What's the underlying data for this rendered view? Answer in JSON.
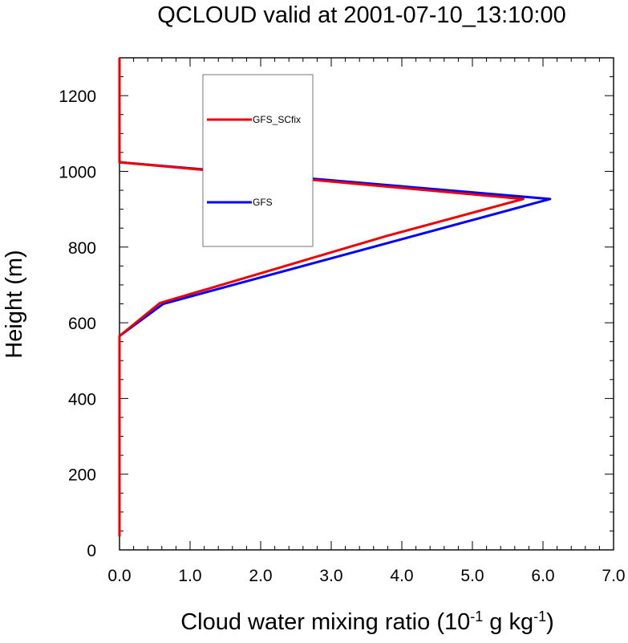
{
  "chart_data": {
    "type": "line",
    "title": "QCLOUD valid at 2001-07-10_13:10:00",
    "xlabel": {
      "main": "Cloud water mixing ratio (10",
      "sup1": "-1",
      "mid": " g kg",
      "sup2": "-1",
      "end": ")"
    },
    "ylabel": "Height (m)",
    "xlim": [
      0,
      7
    ],
    "ylim": [
      0,
      1300
    ],
    "x_ticks": [
      0,
      1,
      2,
      3,
      4,
      5,
      6,
      7
    ],
    "x_tick_labels": [
      "0.0",
      "1.0",
      "2.0",
      "3.0",
      "4.0",
      "5.0",
      "6.0",
      "7.0"
    ],
    "y_ticks": [
      0,
      200,
      400,
      600,
      800,
      1000,
      1200
    ],
    "y_tick_labels": [
      "0",
      "200",
      "400",
      "600",
      "800",
      "1000",
      "1200"
    ],
    "grid": false,
    "legend_position": "upper-left-center",
    "series": [
      {
        "name": "GFS",
        "color": "#0000ff",
        "points": [
          [
            0,
            35
          ],
          [
            0,
            565
          ],
          [
            0.62,
            650
          ],
          [
            6.1,
            927
          ],
          [
            0,
            1024
          ],
          [
            0,
            1300
          ]
        ]
      },
      {
        "name": "GFS_SCfix",
        "color": "#ee0000",
        "points": [
          [
            0,
            35
          ],
          [
            0,
            565
          ],
          [
            0.57,
            652
          ],
          [
            3.8,
            830
          ],
          [
            5.72,
            927
          ],
          [
            0,
            1024
          ],
          [
            0,
            1300
          ]
        ]
      }
    ]
  }
}
